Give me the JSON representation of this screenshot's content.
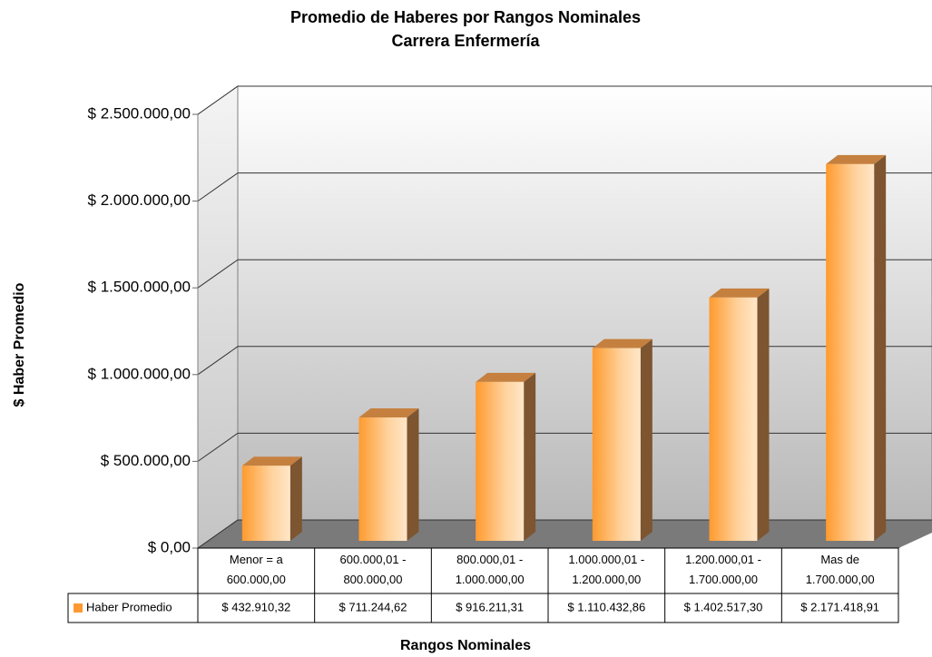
{
  "chart_data": {
    "type": "bar3d",
    "title": "Promedio de Haberes por Rangos Nominales",
    "subtitle": "Carrera Enfermería",
    "y_label": "$ Haber Promedio",
    "x_label": "Rangos Nominales",
    "categories": [
      "Menor = a 600.000,00",
      "600.000,01 - 800.000,00",
      "800.000,01 - 1.000.000,00",
      "1.000.000,01 - 1.200.000,00",
      "1.200.000,01 - 1.700.000,00",
      "Mas de 1.700.000,00"
    ],
    "series": [
      {
        "name": "Haber Promedio",
        "color": "#ff9933",
        "values": [
          432910.32,
          711244.62,
          916211.31,
          1110432.86,
          1402517.3,
          2171418.91
        ],
        "value_labels": [
          "$ 432.910,32",
          "$ 711.244,62",
          "$ 916.211,31",
          "$ 1.110.432,86",
          "$ 1.402.517,30",
          "$ 2.171.418,91"
        ]
      }
    ],
    "ylim": [
      0,
      2500000
    ],
    "yticks": [
      {
        "value": 0,
        "label": "$ 0,00"
      },
      {
        "value": 500000,
        "label": "$ 500.000,00"
      },
      {
        "value": 1000000,
        "label": "$ 1.000.000,00"
      },
      {
        "value": 1500000,
        "label": "$ 1.500.000,00"
      },
      {
        "value": 2000000,
        "label": "$ 2.000.000,00"
      },
      {
        "value": 2500000,
        "label": "$ 2.500.000,00"
      }
    ],
    "grid": true,
    "legend": "table"
  }
}
